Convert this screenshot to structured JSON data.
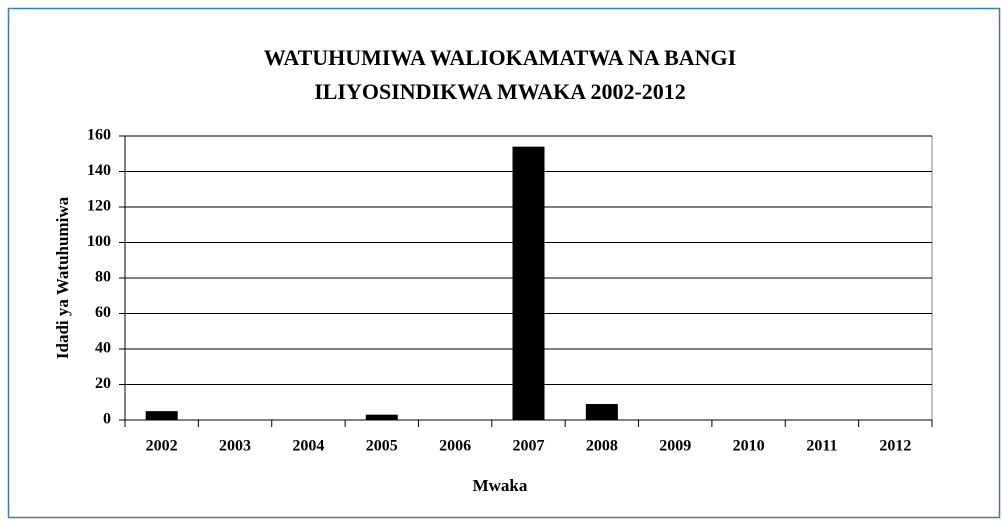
{
  "chart_data": {
    "type": "bar",
    "title": [
      "WATUHUMIWA WALIOKAMATWA NA BANGI",
      "ILIYOSINDIKWA MWAKA 2002-2012"
    ],
    "x_label": "Mwaka",
    "y_label": "Idadi ya Watuhumiwa",
    "categories": [
      "2002",
      "2003",
      "2004",
      "2005",
      "2006",
      "2007",
      "2008",
      "2009",
      "2010",
      "2011",
      "2012"
    ],
    "values": [
      5,
      0,
      0,
      3,
      0,
      154,
      9,
      0,
      0,
      0,
      0
    ],
    "color": "#000000",
    "ylim": [
      0,
      160
    ],
    "yticks": [
      0,
      20,
      40,
      60,
      80,
      100,
      120,
      140,
      160
    ],
    "grid": true
  }
}
